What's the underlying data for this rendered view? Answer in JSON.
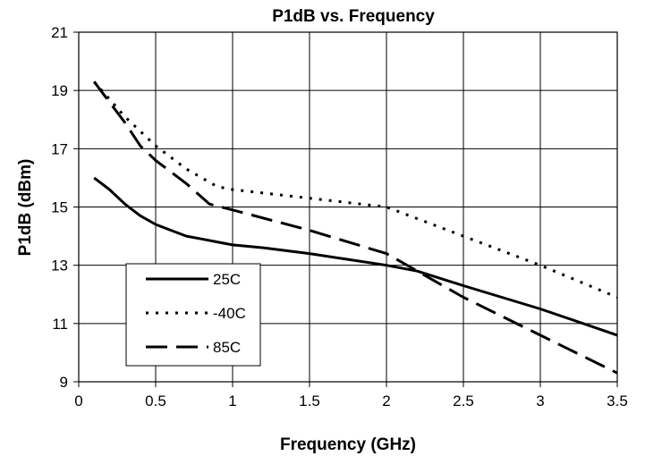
{
  "chart_data": {
    "type": "line",
    "title": "P1dB vs. Frequency",
    "xlabel": "Frequency (GHz)",
    "ylabel": "P1dB (dBm)",
    "xlim": [
      0,
      3.5
    ],
    "ylim": [
      9,
      21
    ],
    "xticks": [
      "0",
      "0.5",
      "1",
      "1.5",
      "2",
      "2.5",
      "3",
      "3.5"
    ],
    "yticks": [
      "9",
      "11",
      "13",
      "15",
      "17",
      "19",
      "21"
    ],
    "grid": true,
    "legend_position": "lower-left",
    "series": [
      {
        "name": "25C",
        "style": "solid",
        "color": "#000000",
        "x": [
          0.1,
          0.2,
          0.3,
          0.4,
          0.5,
          0.6,
          0.7,
          0.8,
          0.9,
          1.0,
          1.2,
          1.5,
          2.0,
          2.2,
          2.5,
          3.0,
          3.5
        ],
        "y": [
          16.0,
          15.6,
          15.1,
          14.7,
          14.4,
          14.2,
          14.0,
          13.9,
          13.8,
          13.7,
          13.6,
          13.4,
          13.0,
          12.8,
          12.3,
          11.5,
          10.6
        ]
      },
      {
        "name": "-40C",
        "style": "dotted",
        "color": "#000000",
        "x": [
          0.1,
          0.2,
          0.3,
          0.5,
          0.7,
          0.9,
          1.0,
          1.5,
          2.0,
          2.5,
          3.0,
          3.5
        ],
        "y": [
          19.3,
          18.7,
          18.1,
          17.1,
          16.3,
          15.7,
          15.6,
          15.3,
          15.0,
          14.0,
          13.0,
          11.9
        ]
      },
      {
        "name": "85C",
        "style": "dashed",
        "color": "#000000",
        "x": [
          0.1,
          0.2,
          0.3,
          0.4,
          0.5,
          0.7,
          0.85,
          1.0,
          1.5,
          2.0,
          2.5,
          3.0,
          3.5
        ],
        "y": [
          19.3,
          18.6,
          17.9,
          17.1,
          16.6,
          15.8,
          15.1,
          14.9,
          14.2,
          13.4,
          11.9,
          10.6,
          9.3
        ]
      }
    ]
  }
}
